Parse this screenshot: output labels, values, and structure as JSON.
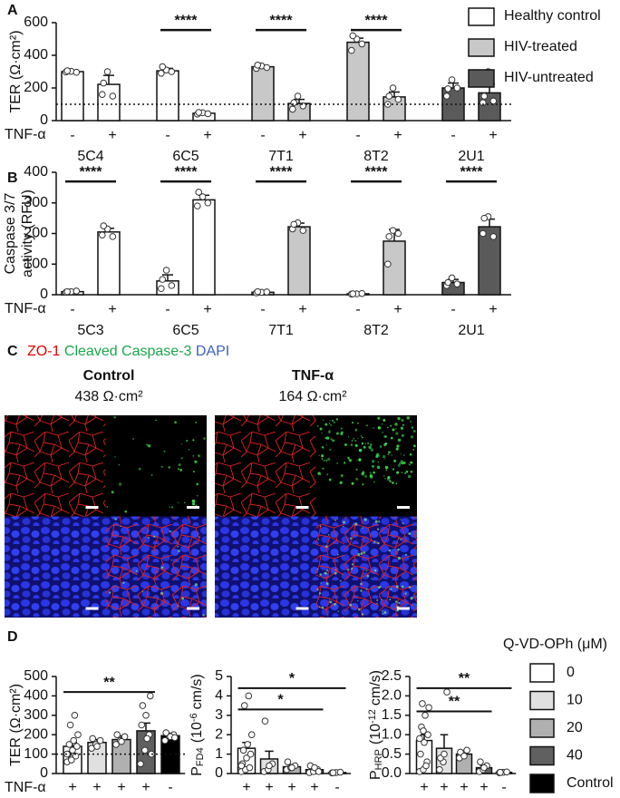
{
  "chart_data": [
    {
      "panel_label": "A",
      "type": "grouped_bar",
      "ylabel": "TER (Ω·cm²)",
      "ylim": [
        0,
        600
      ],
      "yticks": [
        0,
        200,
        400,
        600
      ],
      "reference_line": 100,
      "row_label": "TNF-α",
      "treatment": [
        "-",
        "+"
      ],
      "legend": "right",
      "bracket_y": 555,
      "series": [
        {
          "name": "Healthy control",
          "color": "#ffffff",
          "categories": [
            "5C4",
            "6C5"
          ],
          "values": [
            [
              300,
              222
            ],
            [
              305,
              45
            ]
          ],
          "errors": [
            [
              8,
              55
            ],
            [
              15,
              5
            ]
          ],
          "points": [
            [
              [
                298,
                302,
                296,
                305
              ],
              [
                160,
                300,
                150,
                230
              ]
            ],
            [
              [
                290,
                310,
                300,
                330
              ],
              [
                40,
                48,
                42,
                50
              ]
            ]
          ],
          "significance": [
            null,
            "****"
          ]
        },
        {
          "name": "HIV-treated",
          "color": "#c8c8c8",
          "categories": [
            "7T1",
            "8T2"
          ],
          "values": [
            [
              330,
              105
            ],
            [
              480,
              145
            ]
          ],
          "errors": [
            [
              8,
              25
            ],
            [
              25,
              30
            ]
          ],
          "points": [
            [
              [
                320,
                335,
                325,
                340
              ],
              [
                70,
                150,
                90,
                110
              ]
            ],
            [
              [
                430,
                500,
                470,
                520
              ],
              [
                100,
                200,
                130,
                150
              ]
            ]
          ],
          "significance": [
            "****",
            "****"
          ]
        },
        {
          "name": "HIV-untreated",
          "color": "#5a5a5a",
          "categories": [
            "2U1"
          ],
          "values": [
            [
              200,
              170
            ]
          ],
          "errors": [
            [
              30,
              55
            ]
          ],
          "points": [
            [
              [
                150,
                250,
                200,
                195
              ],
              [
                110,
                300,
                120,
                150
              ]
            ]
          ],
          "significance": [
            null
          ]
        }
      ]
    },
    {
      "panel_label": "B",
      "type": "grouped_bar",
      "ylabel": [
        "Caspase 3/7",
        "activity (RFU)"
      ],
      "ylim": [
        0,
        400
      ],
      "yticks": [
        0,
        100,
        200,
        300,
        400
      ],
      "row_label": "TNF-α",
      "treatment": [
        "-",
        "+"
      ],
      "bracket_y": 370,
      "series": [
        {
          "color": "#ffffff",
          "categories": [
            "5C3",
            "6C5"
          ],
          "values": [
            [
              10,
              205
            ],
            [
              45,
              310
            ]
          ],
          "errors": [
            [
              3,
              12
            ],
            [
              20,
              15
            ]
          ],
          "points": [
            [
              [
                8,
                10,
                12,
                10
              ],
              [
                195,
                215,
                190,
                225
              ]
            ],
            [
              [
                20,
                80,
                30,
                50
              ],
              [
                290,
                320,
                300,
                335
              ]
            ]
          ],
          "significance": [
            "****",
            "****"
          ]
        },
        {
          "color": "#c8c8c8",
          "categories": [
            "7T1",
            "8T2"
          ],
          "values": [
            [
              8,
              222
            ],
            [
              3,
              175
            ]
          ],
          "errors": [
            [
              2,
              12
            ],
            [
              1,
              38
            ]
          ],
          "points": [
            [
              [
                6,
                8,
                9,
                10
              ],
              [
                215,
                235,
                210,
                230
              ]
            ],
            [
              [
                2,
                3,
                4,
                3
              ],
              [
                100,
                210,
                200,
                190
              ]
            ]
          ],
          "significance": [
            "****",
            "****"
          ]
        },
        {
          "color": "#5a5a5a",
          "categories": [
            "2U1"
          ],
          "values": [
            [
              40,
              222
            ]
          ],
          "errors": [
            [
              10,
              25
            ]
          ],
          "points": [
            [
              [
                30,
                55,
                35,
                40
              ],
              [
                200,
                255,
                190,
                250
              ]
            ]
          ],
          "significance": [
            "****"
          ]
        }
      ]
    },
    {
      "panel_label": "D",
      "type": "bar",
      "ylabel": "TER (Ω·cm²)",
      "ylim": [
        0,
        500
      ],
      "yticks": [
        0,
        100,
        200,
        300,
        400,
        500
      ],
      "reference_line": 100,
      "row_label": "TNF-α",
      "treatment": [
        "+",
        "+",
        "+",
        "+",
        "-"
      ],
      "colors": [
        "#ffffff",
        "#e0e0e0",
        "#b0b0b0",
        "#606060",
        "#000000"
      ],
      "values": [
        140,
        160,
        175,
        220,
        195
      ],
      "errors": [
        20,
        15,
        18,
        40,
        12
      ],
      "points": [
        [
          60,
          80,
          90,
          100,
          120,
          140,
          150,
          170,
          200,
          250,
          300,
          100,
          70
        ],
        [
          130,
          150,
          170,
          180,
          140
        ],
        [
          150,
          170,
          190,
          200,
          165
        ],
        [
          50,
          120,
          200,
          250,
          300,
          400,
          350,
          180,
          100
        ],
        [
          170,
          190,
          200,
          210,
          190,
          185
        ]
      ],
      "brackets": [
        {
          "label": "**",
          "from": 0,
          "to": 3,
          "y": 420
        }
      ]
    },
    {
      "type": "bar",
      "ylabel": {
        "symbol": "P",
        "subscript": "FD4",
        "prefix": "(10",
        "exponent": "-6",
        "unit": "cm/s)"
      },
      "ylim": [
        0,
        5
      ],
      "yticks": [
        0,
        1,
        2,
        3,
        4,
        5
      ],
      "treatment": [
        "+",
        "+",
        "+",
        "+",
        "-"
      ],
      "colors": [
        "#ffffff",
        "#e0e0e0",
        "#b0b0b0",
        "#606060",
        "#000000"
      ],
      "values": [
        1.3,
        0.75,
        0.35,
        0.2,
        0.05
      ],
      "errors": [
        0.3,
        0.4,
        0.1,
        0.06,
        0.02
      ],
      "points": [
        [
          0.1,
          0.2,
          0.3,
          0.5,
          0.8,
          1.0,
          1.2,
          1.5,
          2,
          3.5,
          4.0,
          0.4
        ],
        [
          0.1,
          0.2,
          0.5,
          2.7,
          0.4
        ],
        [
          0.2,
          0.3,
          0.4,
          0.6,
          0.3
        ],
        [
          0.05,
          0.1,
          0.2,
          0.4,
          0.3,
          0.1
        ],
        [
          0.03,
          0.05,
          0.07,
          0.04
        ]
      ],
      "brackets": [
        {
          "label": "*",
          "from": 0,
          "to": 4,
          "y": 4.4
        },
        {
          "label": "*",
          "from": 0,
          "to": 3,
          "y": 3.3
        }
      ]
    },
    {
      "type": "bar",
      "ylabel": {
        "symbol": "P",
        "subscript": "HRP",
        "prefix": "(10",
        "exponent": "-12",
        "unit": "cm/s)"
      },
      "ylim": [
        0,
        2.5
      ],
      "yticks": [
        {
          "value": 0,
          "label": "0.0"
        },
        0.5,
        {
          "value": 1,
          "label": "1.0"
        },
        1.5,
        {
          "value": 2,
          "label": "2.0"
        },
        2.5
      ],
      "treatment": [
        "+",
        "+",
        "+",
        "+",
        "-"
      ],
      "categories": [
        "0",
        "10",
        "20",
        "40",
        "Control"
      ],
      "legend": {
        "title": "Q-VD-OPh (μM)"
      },
      "colors": [
        "#ffffff",
        "#e0e0e0",
        "#b0b0b0",
        "#606060",
        "#000000"
      ],
      "values": [
        0.85,
        0.65,
        0.5,
        0.15,
        0.03
      ],
      "errors": [
        0.15,
        0.35,
        0.07,
        0.05,
        0.01
      ],
      "points": [
        [
          0.05,
          0.1,
          0.3,
          0.5,
          0.8,
          1.0,
          1.2,
          1.5,
          1.7,
          1.8,
          0.2,
          0.9,
          1.1
        ],
        [
          0.1,
          0.3,
          2.1,
          0.4,
          0.5
        ],
        [
          0.4,
          0.5,
          0.6,
          0.55,
          0.45
        ],
        [
          0.05,
          0.1,
          0.2,
          0.3,
          0.15
        ],
        [
          0.02,
          0.03,
          0.04,
          0.03
        ]
      ],
      "brackets": [
        {
          "label": "**",
          "from": 0,
          "to": 4,
          "y": 2.2
        },
        {
          "label": "**",
          "from": 0,
          "to": 3,
          "y": 1.6
        }
      ]
    }
  ],
  "panel_c": {
    "panel_label": "C",
    "stains": [
      {
        "text": "ZO-1",
        "color": "#e00000"
      },
      {
        "text": "Cleaved Caspase-3",
        "color": "#1aa84a"
      },
      {
        "text": "DAPI",
        "color": "#3a5fc8"
      }
    ],
    "conditions": [
      {
        "title": "Control",
        "ter": "438 Ω·cm²"
      },
      {
        "title": "TNF-α",
        "ter": "164 Ω·cm²"
      }
    ]
  }
}
